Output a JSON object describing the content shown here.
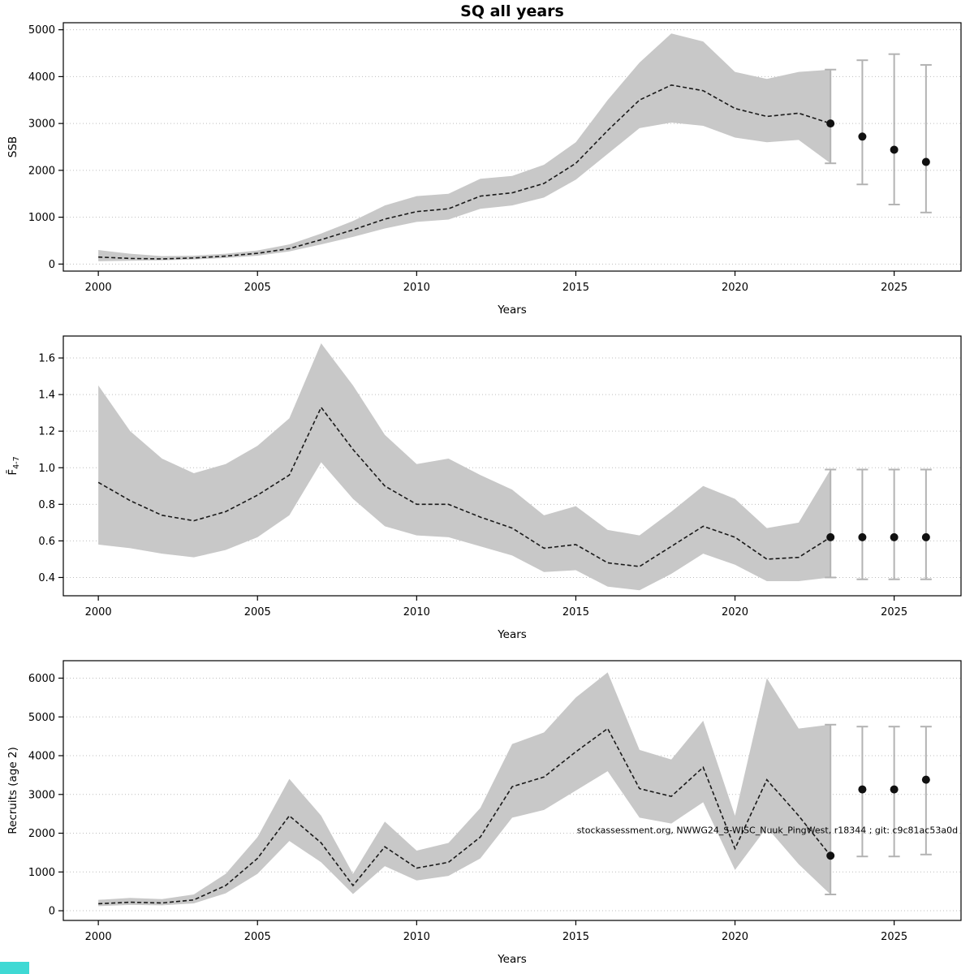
{
  "figure": {
    "title": "SQ all years",
    "watermark": "stockassessment.org, NWWG24_S-WISC_Nuuk_PingWest, r18344 ; git: c9c81ac53a0d",
    "corner_color": "#3fd9d4"
  },
  "colors": {
    "band": "#c8c8c8",
    "line": "#1a1a1a",
    "point": "#111111",
    "errorbar": "#b3b3b3",
    "grid": "#bdbdbd",
    "frame": "#000000"
  },
  "chart_data": [
    {
      "type": "line",
      "title": "SQ all years",
      "xlabel": "Years",
      "ylabel": "SSB",
      "ylabel_sub": "",
      "xlim": [
        1998.9,
        2027.1
      ],
      "ylim": [
        -150,
        5150
      ],
      "xticks": [
        2000,
        2005,
        2010,
        2015,
        2020,
        2025
      ],
      "yticks": [
        0,
        1000,
        2000,
        3000,
        4000,
        5000
      ],
      "ytick_labels": [
        "0",
        "1000",
        "2000",
        "3000",
        "4000",
        "5000"
      ],
      "years": [
        2000,
        2001,
        2002,
        2003,
        2004,
        2005,
        2006,
        2007,
        2008,
        2009,
        2010,
        2011,
        2012,
        2013,
        2014,
        2015,
        2016,
        2017,
        2018,
        2019,
        2020,
        2021,
        2022,
        2023
      ],
      "median": [
        150,
        120,
        110,
        130,
        170,
        230,
        330,
        520,
        730,
        960,
        1120,
        1180,
        1450,
        1520,
        1720,
        2150,
        2850,
        3500,
        3820,
        3700,
        3320,
        3150,
        3220,
        3000
      ],
      "lower": [
        60,
        70,
        80,
        100,
        130,
        180,
        270,
        420,
        580,
        760,
        900,
        950,
        1180,
        1250,
        1420,
        1800,
        2350,
        2900,
        3020,
        2950,
        2700,
        2600,
        2650,
        2150
      ],
      "upper": [
        300,
        220,
        170,
        180,
        220,
        290,
        420,
        650,
        920,
        1250,
        1450,
        1500,
        1820,
        1880,
        2120,
        2600,
        3500,
        4300,
        4920,
        4750,
        4100,
        3950,
        4100,
        4150
      ],
      "terminal": {
        "year": 2023,
        "value": 3000,
        "lower": 2150,
        "upper": 4150
      },
      "forecast": {
        "years": [
          2024,
          2025,
          2026
        ],
        "values": [
          2720,
          2440,
          2180
        ],
        "lower": [
          1700,
          1270,
          1100
        ],
        "upper": [
          4350,
          4480,
          4250
        ]
      }
    },
    {
      "type": "line",
      "title": "",
      "xlabel": "Years",
      "ylabel": "F̄",
      "ylabel_sub": "4-7",
      "xlim": [
        1998.9,
        2027.1
      ],
      "ylim": [
        0.3,
        1.72
      ],
      "xticks": [
        2000,
        2005,
        2010,
        2015,
        2020,
        2025
      ],
      "yticks": [
        0.4,
        0.6,
        0.8,
        1.0,
        1.2,
        1.4,
        1.6
      ],
      "ytick_labels": [
        "0.4",
        "0.6",
        "0.8",
        "1.0",
        "1.2",
        "1.4",
        "1.6"
      ],
      "years": [
        2000,
        2001,
        2002,
        2003,
        2004,
        2005,
        2006,
        2007,
        2008,
        2009,
        2010,
        2011,
        2012,
        2013,
        2014,
        2015,
        2016,
        2017,
        2018,
        2019,
        2020,
        2021,
        2022,
        2023
      ],
      "median": [
        0.92,
        0.82,
        0.74,
        0.71,
        0.76,
        0.85,
        0.96,
        1.33,
        1.1,
        0.9,
        0.8,
        0.8,
        0.73,
        0.67,
        0.56,
        0.58,
        0.48,
        0.46,
        0.57,
        0.68,
        0.62,
        0.5,
        0.51,
        0.62
      ],
      "lower": [
        0.58,
        0.56,
        0.53,
        0.51,
        0.55,
        0.62,
        0.74,
        1.03,
        0.83,
        0.68,
        0.63,
        0.62,
        0.57,
        0.52,
        0.43,
        0.44,
        0.35,
        0.33,
        0.42,
        0.53,
        0.47,
        0.38,
        0.38,
        0.4
      ],
      "upper": [
        1.45,
        1.2,
        1.05,
        0.97,
        1.02,
        1.12,
        1.27,
        1.68,
        1.45,
        1.18,
        1.02,
        1.05,
        0.96,
        0.88,
        0.74,
        0.79,
        0.66,
        0.63,
        0.76,
        0.9,
        0.83,
        0.67,
        0.7,
        0.99
      ],
      "terminal": {
        "year": 2023,
        "value": 0.62,
        "lower": 0.4,
        "upper": 0.99
      },
      "forecast": {
        "years": [
          2024,
          2025,
          2026
        ],
        "values": [
          0.62,
          0.62,
          0.62
        ],
        "lower": [
          0.39,
          0.39,
          0.39
        ],
        "upper": [
          0.99,
          0.99,
          0.99
        ]
      }
    },
    {
      "type": "line",
      "title": "",
      "xlabel": "Years",
      "ylabel": "Recruits (age 2)",
      "ylabel_sub": "",
      "xlim": [
        1998.9,
        2027.1
      ],
      "ylim": [
        -250,
        6450
      ],
      "xticks": [
        2000,
        2005,
        2010,
        2015,
        2020,
        2025
      ],
      "yticks": [
        0,
        1000,
        2000,
        3000,
        4000,
        5000,
        6000
      ],
      "ytick_labels": [
        "0",
        "1000",
        "2000",
        "3000",
        "4000",
        "5000",
        "6000"
      ],
      "years": [
        2000,
        2001,
        2002,
        2003,
        2004,
        2005,
        2006,
        2007,
        2008,
        2009,
        2010,
        2011,
        2012,
        2013,
        2014,
        2015,
        2016,
        2017,
        2018,
        2019,
        2020,
        2021,
        2022,
        2023
      ],
      "median": [
        180,
        220,
        200,
        280,
        650,
        1350,
        2450,
        1750,
        650,
        1650,
        1100,
        1250,
        1900,
        3200,
        3450,
        4100,
        4700,
        3150,
        2950,
        3700,
        1600,
        3380,
        2450,
        1420
      ],
      "lower": [
        120,
        150,
        140,
        190,
        450,
        950,
        1800,
        1250,
        430,
        1150,
        780,
        900,
        1350,
        2400,
        2600,
        3100,
        3600,
        2400,
        2250,
        2800,
        1050,
        2150,
        1200,
        420
      ],
      "upper": [
        280,
        330,
        300,
        420,
        950,
        1900,
        3400,
        2450,
        950,
        2300,
        1550,
        1750,
        2650,
        4300,
        4600,
        5500,
        6150,
        4150,
        3900,
        4900,
        2450,
        6000,
        4700,
        4800
      ],
      "terminal": {
        "year": 2023,
        "value": 1420,
        "lower": 420,
        "upper": 4800
      },
      "forecast": {
        "years": [
          2024,
          2025,
          2026
        ],
        "values": [
          3130,
          3130,
          3380
        ],
        "lower": [
          1400,
          1400,
          1450
        ],
        "upper": [
          4750,
          4750,
          4750
        ]
      },
      "annotation": {
        "text": "stockassessment.org, NWWG24_S-WISC_Nuuk_PingWest, r18344 ; git: c9c81ac53a0d",
        "x": 2027,
        "y": 2000,
        "anchor": "end"
      }
    }
  ]
}
